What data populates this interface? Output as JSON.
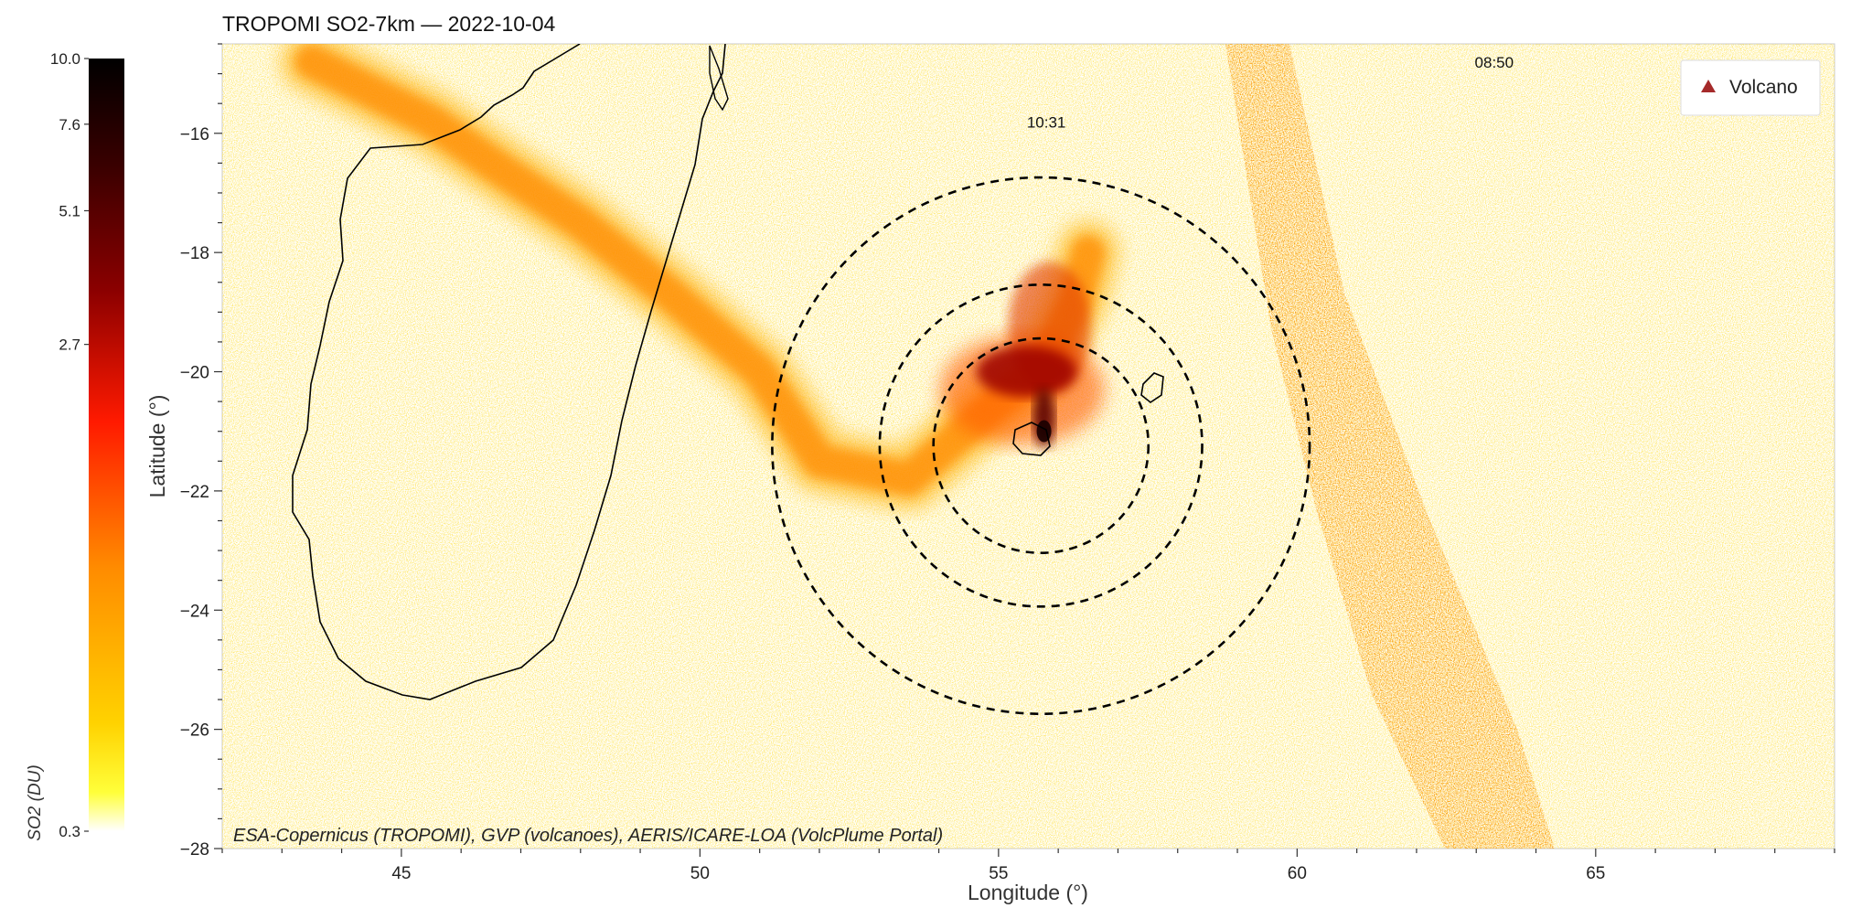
{
  "chart_data": {
    "type": "heatmap",
    "title": "TROPOMI SO2-7km — 2022-10-04",
    "xlabel": "Longitude (°)",
    "ylabel": "Latitude (°)",
    "xlim": [
      42.0,
      69.0
    ],
    "ylim": [
      -28.0,
      -14.5
    ],
    "x_ticks": [
      45,
      50,
      55,
      60,
      65
    ],
    "y_ticks": [
      -16,
      -18,
      -20,
      -22,
      -24,
      -26,
      -28
    ],
    "colorbar": {
      "label": "SO2 (DU)",
      "ticks": [
        "10.0",
        "7.6",
        "5.1",
        "2.7",
        "0.3"
      ],
      "colors": [
        "#000000",
        "#5a0000",
        "#b00000",
        "#ff2a00",
        "#ff8c00",
        "#ffd000",
        "#ffff40",
        "#ffffff"
      ]
    },
    "legend": {
      "label": "Volcano",
      "color": "#a52a2a",
      "position": "top-right"
    },
    "annotations": [
      {
        "text": "10:31",
        "lon": 55.8,
        "lat": -15.9
      },
      {
        "text": "08:50",
        "lon": 63.3,
        "lat": -14.9
      }
    ],
    "volcano": {
      "lon": 55.71,
      "lat": -21.24
    },
    "range_rings": [
      {
        "center_lon": 55.71,
        "center_lat": -21.24,
        "radius_deg": 1.8
      },
      {
        "center_lon": 55.71,
        "center_lat": -21.24,
        "radius_deg": 2.7
      },
      {
        "center_lon": 55.71,
        "center_lat": -21.24,
        "radius_deg": 4.5
      }
    ],
    "plume_path": [
      [
        43.5,
        -14.8
      ],
      [
        45.5,
        -15.8
      ],
      [
        46.5,
        -16.5
      ],
      [
        48.0,
        -17.5
      ],
      [
        49.5,
        -18.7
      ],
      [
        51.0,
        -20.0
      ],
      [
        52.0,
        -21.5
      ],
      [
        53.5,
        -21.8
      ],
      [
        55.0,
        -20.5
      ],
      [
        55.7,
        -20.0
      ],
      [
        56.3,
        -18.8
      ],
      [
        56.5,
        -18.0
      ]
    ],
    "plume_core": {
      "lon": 55.7,
      "lat": -20.0,
      "max_du": 10.0
    },
    "attribution": "ESA-Copernicus (TROPOMI), GVP (volcanoes), AERIS/ICARE-LOA (VolcPlume Portal)",
    "grid": false
  }
}
